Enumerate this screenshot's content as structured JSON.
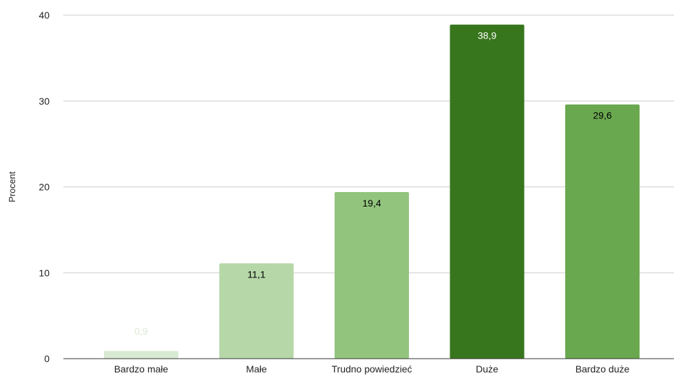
{
  "chart_data": {
    "type": "bar",
    "title": "",
    "xlabel": "",
    "ylabel": "Procent",
    "ylim": [
      0,
      40
    ],
    "yticks": [
      0,
      10,
      20,
      30,
      40
    ],
    "grid": true,
    "legend": "none",
    "categories": [
      "Bardzo małe",
      "Małe",
      "Trudno powiedzieć",
      "Duże",
      "Bardzo duże"
    ],
    "values": [
      0.9,
      11.1,
      19.4,
      38.9,
      29.6
    ],
    "value_labels": [
      "0,9",
      "11,1",
      "19,4",
      "38,9",
      "29,6"
    ],
    "bar_colors": [
      "#d9ead3",
      "#b6d7a8",
      "#93c47d",
      "#38761d",
      "#6aa84f"
    ],
    "label_colors": [
      "#d9ead3",
      "#000000",
      "#000000",
      "#ffffff",
      "#000000"
    ]
  }
}
